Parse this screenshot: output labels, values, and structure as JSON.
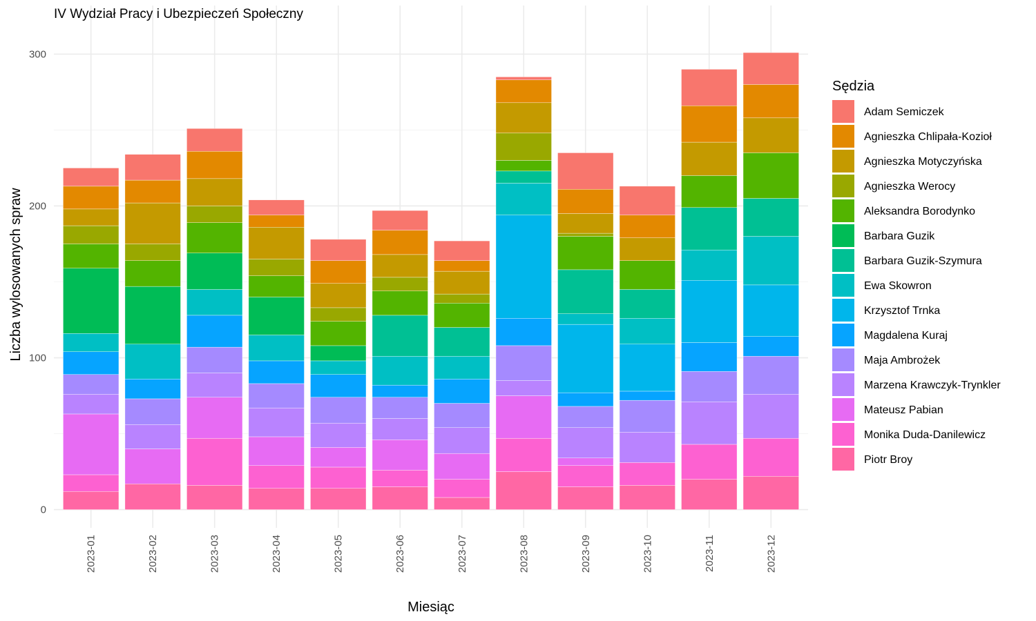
{
  "chart_data": {
    "type": "bar",
    "stacked": true,
    "title": "IV Wydział Pracy i Ubezpieczeń Społeczny",
    "xlabel": "Miesiąc",
    "ylabel": "Liczba wylosowanych spraw",
    "ylim": [
      -12,
      332
    ],
    "yticks": [
      0,
      100,
      200,
      300
    ],
    "grid": true,
    "legend_position": "right",
    "legend_title": "Sędzia",
    "categories": [
      "2023-01",
      "2023-02",
      "2023-03",
      "2023-04",
      "2023-05",
      "2023-06",
      "2023-07",
      "2023-08",
      "2023-09",
      "2023-10",
      "2023-11",
      "2023-12"
    ],
    "series": [
      {
        "name": "Adam Semiczek",
        "color": "#F8766D",
        "values": [
          12,
          17,
          15,
          10,
          14,
          13,
          13,
          2,
          24,
          19,
          24,
          21
        ]
      },
      {
        "name": "Agnieszka Chlipała-Kozioł",
        "color": "#E38900",
        "values": [
          15,
          15,
          18,
          8,
          15,
          16,
          7,
          15,
          16,
          15,
          24,
          22
        ]
      },
      {
        "name": "Agnieszka Motyczyńska",
        "color": "#C49A00",
        "values": [
          11,
          27,
          18,
          21,
          16,
          15,
          15,
          20,
          13,
          15,
          22,
          23
        ]
      },
      {
        "name": "Agnieszka Werocy",
        "color": "#99A800",
        "values": [
          12,
          11,
          11,
          11,
          9,
          9,
          6,
          18,
          2,
          0,
          0,
          0
        ]
      },
      {
        "name": "Aleksandra Borodynko",
        "color": "#53B400",
        "values": [
          16,
          17,
          20,
          14,
          16,
          16,
          16,
          7,
          22,
          19,
          21,
          30
        ]
      },
      {
        "name": "Barbara Guzik",
        "color": "#00BC56",
        "values": [
          43,
          38,
          24,
          25,
          10,
          0,
          0,
          0,
          0,
          0,
          0,
          0
        ]
      },
      {
        "name": "Barbara Guzik-Szymura",
        "color": "#00C094",
        "values": [
          0,
          0,
          0,
          0,
          0,
          27,
          19,
          8,
          29,
          19,
          28,
          25
        ]
      },
      {
        "name": "Ewa Skowron",
        "color": "#00BFC4",
        "values": [
          12,
          23,
          17,
          17,
          9,
          19,
          15,
          21,
          7,
          17,
          20,
          32
        ]
      },
      {
        "name": "Krzysztof Trnka",
        "color": "#00B6EB",
        "values": [
          0,
          0,
          0,
          0,
          0,
          0,
          0,
          68,
          45,
          31,
          41,
          34
        ]
      },
      {
        "name": "Magdalena Kuraj",
        "color": "#06A4FF",
        "values": [
          15,
          13,
          21,
          15,
          15,
          8,
          16,
          18,
          9,
          6,
          19,
          13
        ]
      },
      {
        "name": "Maja Ambrożek",
        "color": "#A58AFF",
        "values": [
          13,
          17,
          17,
          16,
          17,
          14,
          16,
          23,
          14,
          21,
          20,
          25
        ]
      },
      {
        "name": "Marzena Krawczyk-Trynkler",
        "color": "#B983FF",
        "values": [
          13,
          16,
          16,
          19,
          16,
          14,
          17,
          10,
          20,
          20,
          28,
          29
        ]
      },
      {
        "name": "Mateusz Pabian",
        "color": "#E76BF3",
        "values": [
          40,
          23,
          27,
          19,
          13,
          20,
          17,
          28,
          5,
          0,
          0,
          0
        ]
      },
      {
        "name": "Monika Duda-Danilewicz",
        "color": "#FD61D1",
        "values": [
          11,
          0,
          31,
          15,
          14,
          11,
          12,
          22,
          14,
          15,
          23,
          25
        ]
      },
      {
        "name": "Piotr Broy",
        "color": "#FF67A4",
        "values": [
          12,
          17,
          16,
          14,
          14,
          15,
          8,
          25,
          15,
          16,
          20,
          22
        ]
      }
    ]
  }
}
